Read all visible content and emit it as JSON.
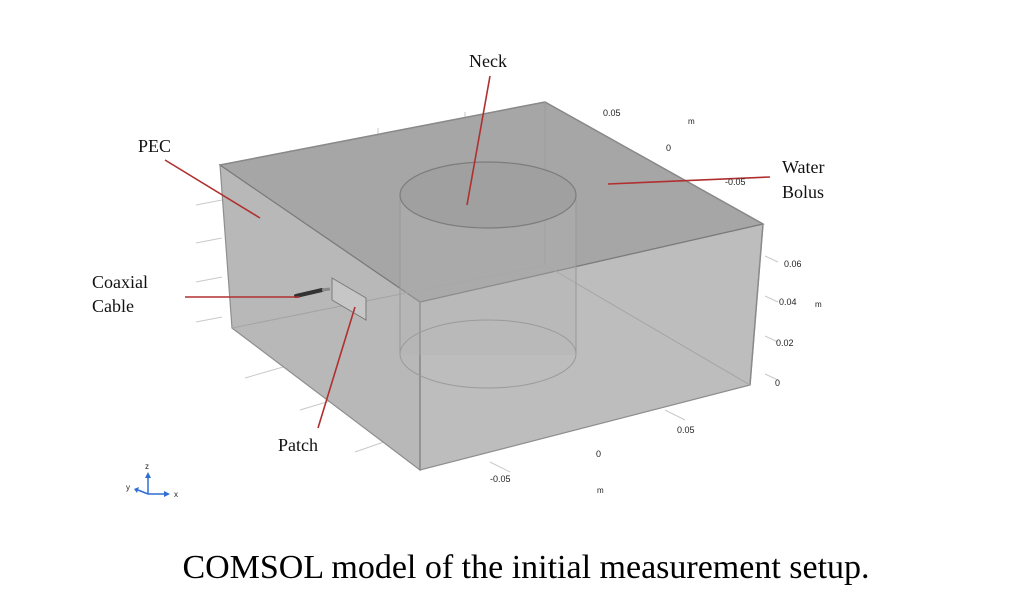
{
  "labels": {
    "neck": "Neck",
    "pec": "PEC",
    "water_line1": "Water",
    "water_line2": "Bolus",
    "coax_line1": "Coaxial",
    "coax_line2": "Cable",
    "patch": "Patch"
  },
  "ticks": {
    "back_axis": [
      "0.05",
      "0",
      "-0.05"
    ],
    "back_unit": "m",
    "vertical_axis": [
      "0.06",
      "0.04",
      "0.02",
      "0"
    ],
    "vertical_unit": "m",
    "front_axis": [
      "0.05",
      "0",
      "-0.05"
    ],
    "front_unit": "m"
  },
  "triad": {
    "z": "z",
    "y": "y",
    "x": "x"
  },
  "caption": "COMSOL model of the initial measurement setup.",
  "colors": {
    "leader": "#b03030",
    "box_fill": "#a9a9a9",
    "triad_blue": "#2f6fd0",
    "coax": "#333333"
  }
}
